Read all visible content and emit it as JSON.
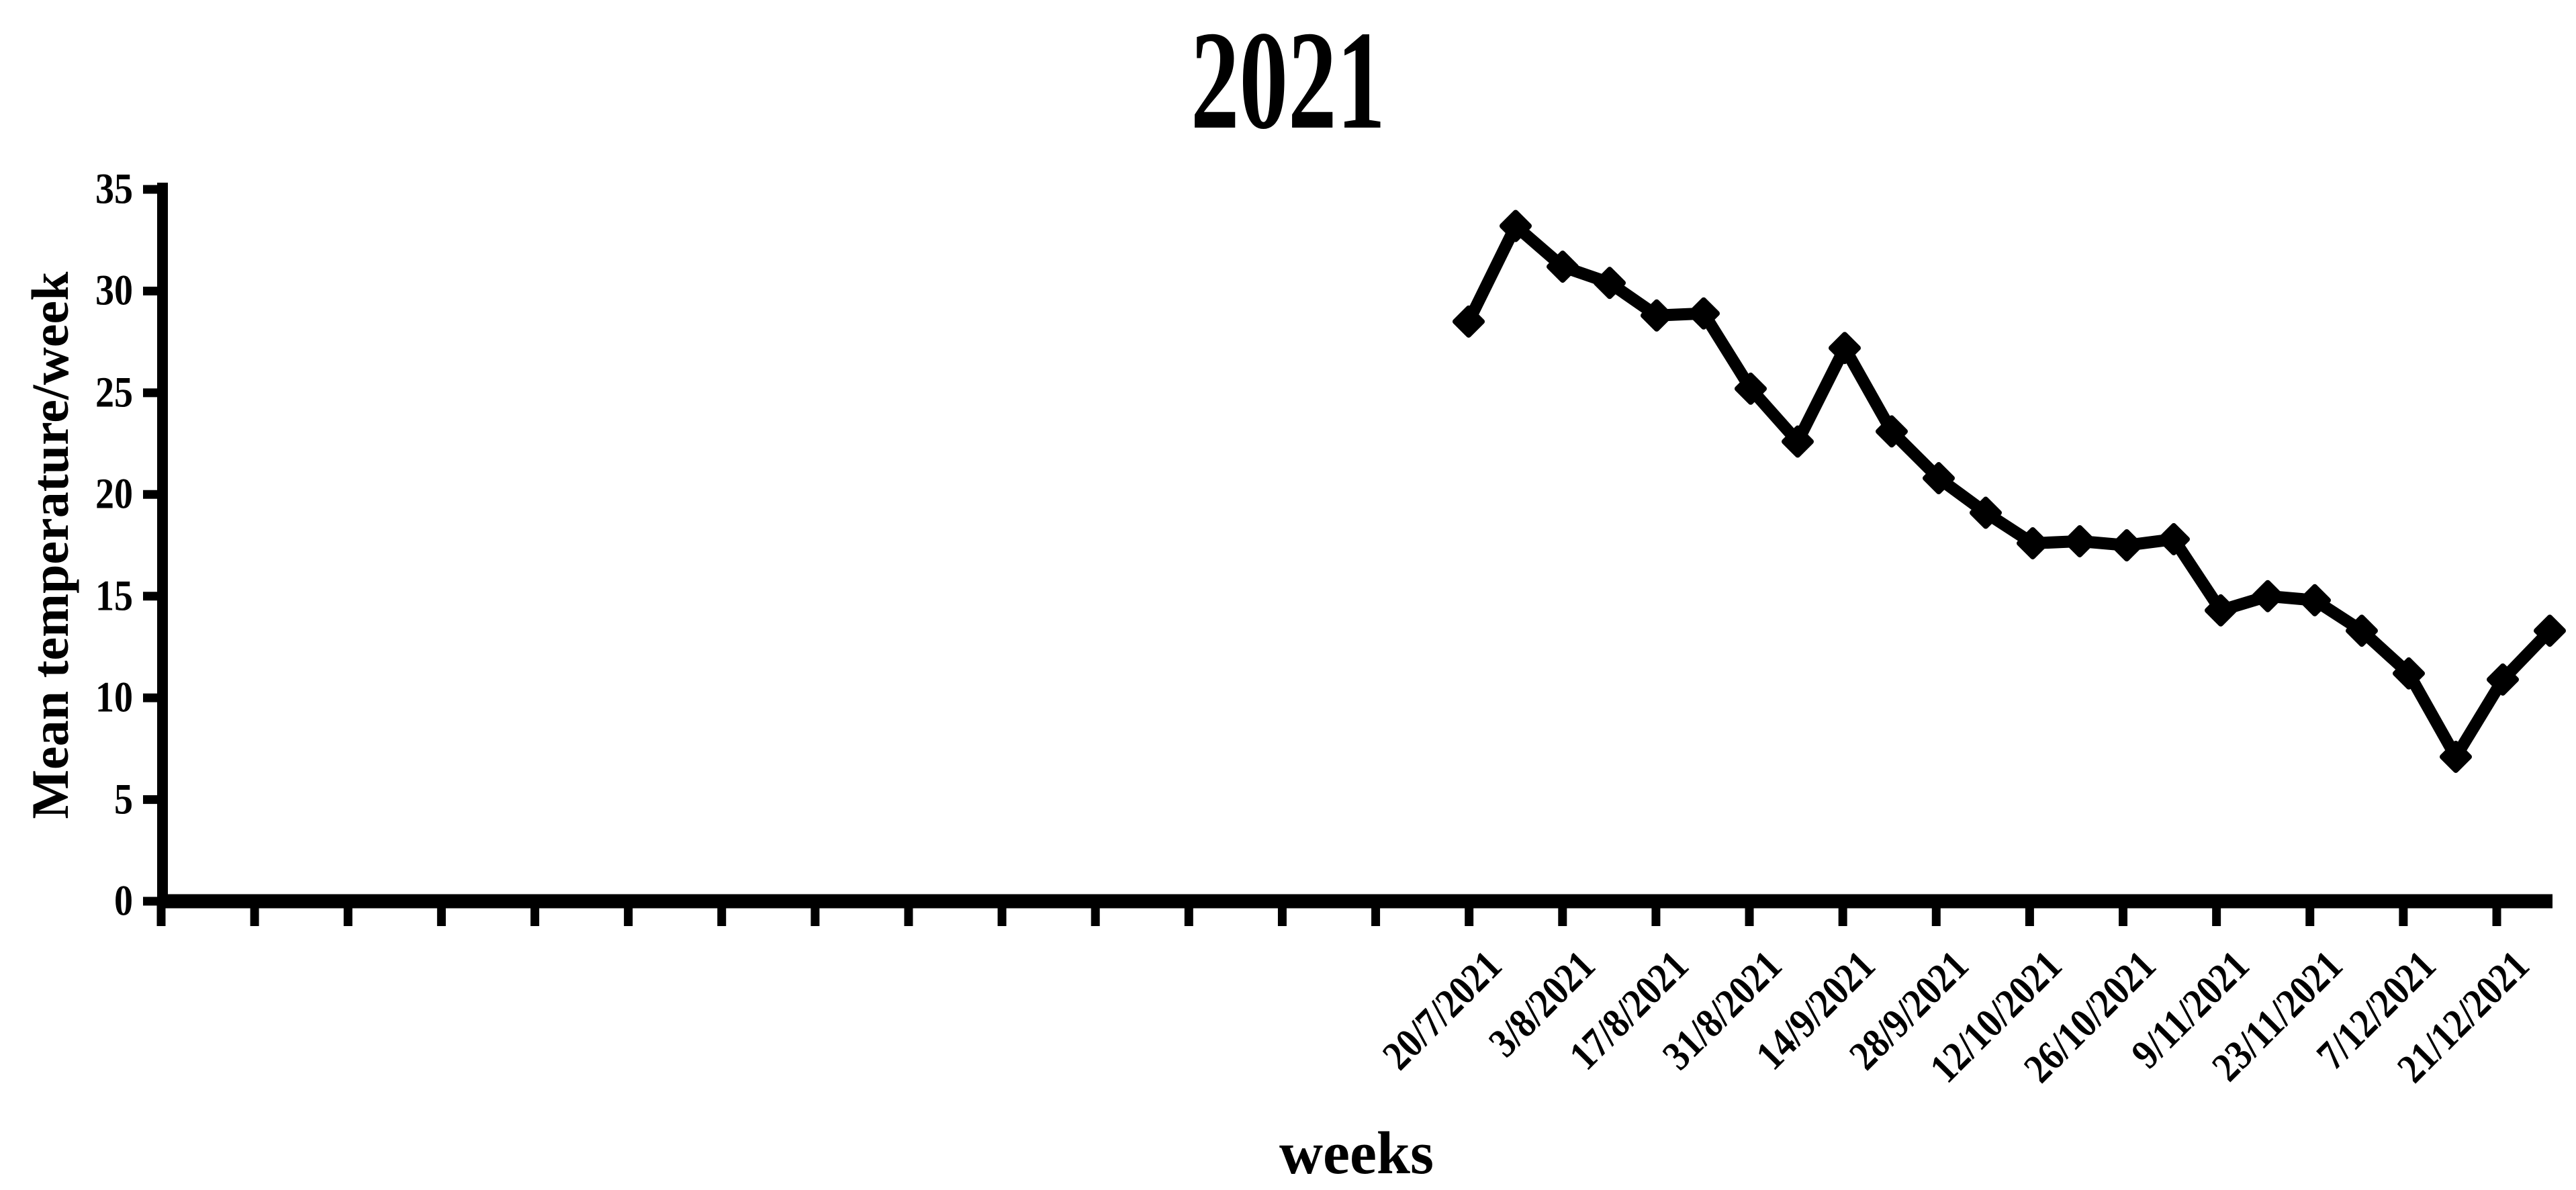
{
  "chart_data": {
    "type": "line",
    "title": "2021",
    "xlabel": "weeks",
    "ylabel": "Mean temperature/week",
    "series_color": "#000000",
    "background_color": "#ffffff",
    "marker": "diamond",
    "grid": "off",
    "legend": "none",
    "ylim": [
      0,
      35
    ],
    "ytick_step": 5,
    "y_tick_labels": [
      "0",
      "5",
      "10",
      "15",
      "20",
      "25",
      "30",
      "35"
    ],
    "x_tick_labels": [
      "20/7/2021",
      "3/8/2021",
      "17/8/2021",
      "31/8/2021",
      "14/9/2021",
      "28/9/2021",
      "12/10/2021",
      "26/10/2021",
      "9/11/2021",
      "23/11/2021",
      "7/12/2021",
      "21/12/2021"
    ],
    "x_tick_note": "axis shows 26 tick marks; only the last 12 ticks (under the data) carry labels, one label every 2 weeks",
    "x": [
      "20/7/2021",
      "27/7/2021",
      "3/8/2021",
      "10/8/2021",
      "17/8/2021",
      "24/8/2021",
      "31/8/2021",
      "7/9/2021",
      "14/9/2021",
      "21/9/2021",
      "28/9/2021",
      "5/10/2021",
      "12/10/2021",
      "19/10/2021",
      "26/10/2021",
      "2/11/2021",
      "9/11/2021",
      "16/11/2021",
      "23/11/2021",
      "30/11/2021",
      "7/12/2021",
      "14/12/2021",
      "21/12/2021",
      "28/12/2021"
    ],
    "values": [
      28.5,
      33.2,
      31.2,
      30.4,
      28.8,
      28.9,
      25.2,
      22.6,
      27.2,
      23.1,
      20.8,
      19.1,
      17.6,
      17.7,
      17.5,
      17.8,
      14.3,
      15.0,
      14.8,
      13.3,
      11.2,
      7.1,
      10.9,
      13.3
    ]
  }
}
